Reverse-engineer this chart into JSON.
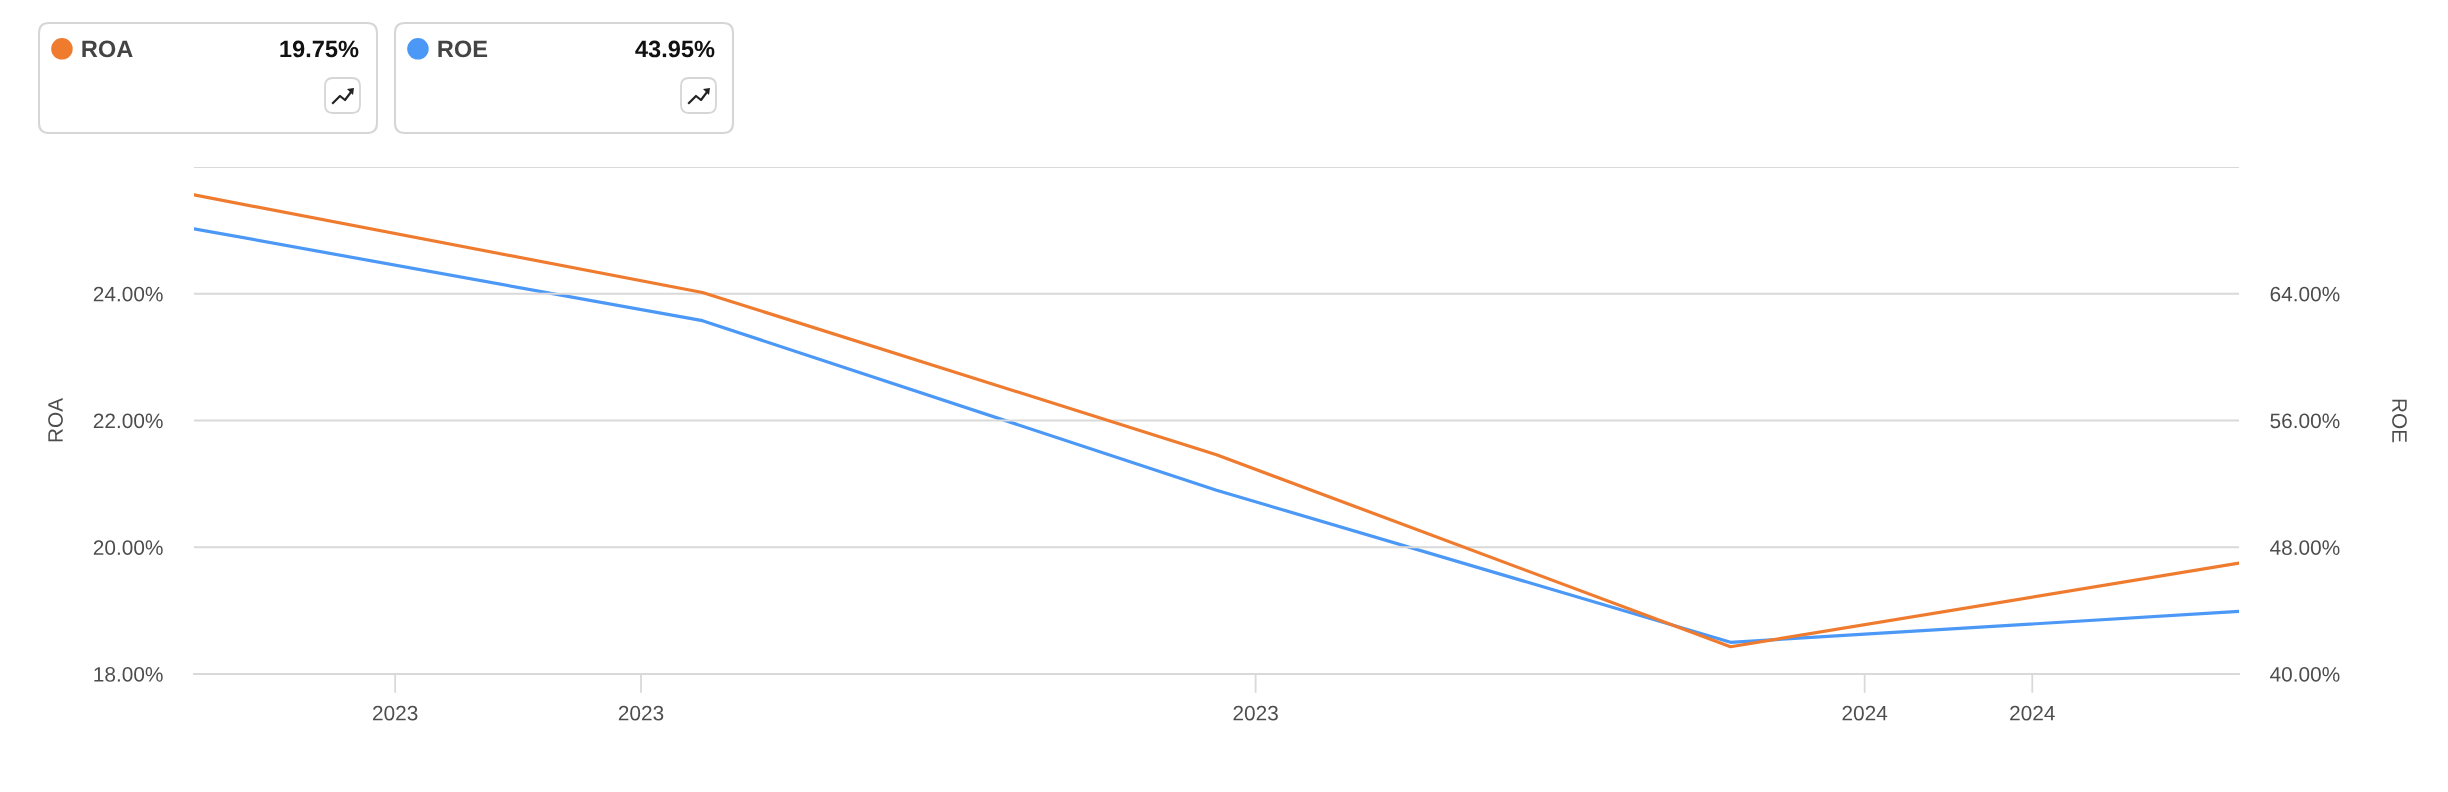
{
  "chart_data": {
    "type": "line",
    "x": [
      "2023-03-31",
      "2023-06-30",
      "2023-09-30",
      "2023-12-31",
      "2024-03-31"
    ],
    "series": [
      {
        "name": "ROA",
        "color": "#ef7b2f",
        "values": [
          25.56,
          24.02,
          21.46,
          18.43,
          19.75
        ]
      },
      {
        "name": "ROE",
        "color": "#4b98f6",
        "values": [
          68.1,
          62.3,
          51.6,
          42.0,
          43.95
        ],
        "axis": "y2"
      }
    ],
    "ylabel": "ROA",
    "y2label": "ROE",
    "xlim": [
      "2023-03-31",
      "2024-03-31"
    ],
    "xticks": [
      {
        "value": "2023-05-06",
        "label": "2023"
      },
      {
        "value": "2023-06-19",
        "label": "2023"
      },
      {
        "value": "2023-10-07",
        "label": "2023"
      },
      {
        "value": "2024-01-24",
        "label": "2024"
      },
      {
        "value": "2024-02-23",
        "label": "2024"
      }
    ],
    "ylim": [
      18,
      26
    ],
    "yticks": [
      {
        "value": 18,
        "label": "18.00%"
      },
      {
        "value": 20,
        "label": "20.00%"
      },
      {
        "value": 22,
        "label": "22.00%"
      },
      {
        "value": 24,
        "label": "24.00%"
      },
      {
        "value": 26,
        "label": null
      }
    ],
    "y2lim": [
      40,
      72
    ],
    "y2ticks": [
      {
        "value": 40,
        "label": "40.00%"
      },
      {
        "value": 48,
        "label": "48.00%"
      },
      {
        "value": 56,
        "label": "56.00%"
      },
      {
        "value": 64,
        "label": "64.00%"
      },
      {
        "value": 72,
        "label": null
      }
    ],
    "annotations": [
      "19.75%",
      "43.95%"
    ],
    "legend": "top left",
    "grid": "y"
  }
}
